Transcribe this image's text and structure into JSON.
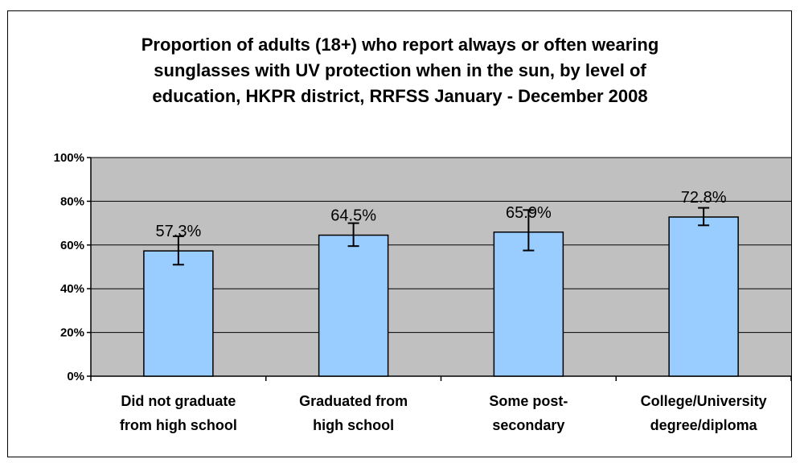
{
  "chart_data": {
    "type": "bar",
    "title": "Proportion of adults (18+) who report always or often wearing sunglasses with UV protection when in the sun, by level of education, HKPR district, RRFSS January - December 2008",
    "title_lines": [
      "Proportion of adults (18+) who report always or often wearing",
      "sunglasses with UV protection when in the sun, by level of",
      "education, HKPR district, RRFSS January - December 2008"
    ],
    "categories": [
      [
        "Did not graduate",
        "from high school"
      ],
      [
        "Graduated from",
        "high school"
      ],
      [
        "Some post-",
        "secondary"
      ],
      [
        "College/University",
        "degree/diploma"
      ]
    ],
    "values": [
      57.3,
      64.5,
      65.9,
      72.8
    ],
    "data_labels": [
      "57.3%",
      "64.5%",
      "65.9%",
      "72.8%"
    ],
    "error_low": [
      51.0,
      59.5,
      57.5,
      69.0
    ],
    "error_high": [
      64.0,
      70.0,
      76.0,
      77.0
    ],
    "ylim": [
      0,
      100
    ],
    "yticks": [
      0,
      20,
      40,
      60,
      80,
      100
    ],
    "ytick_labels": [
      "0%",
      "20%",
      "40%",
      "60%",
      "80%",
      "100%"
    ],
    "xlabel": "",
    "ylabel": "",
    "grid": true,
    "legend": "none",
    "colors": {
      "bar_fill": "#99CCFF",
      "plot_background": "#C0C0C0",
      "grid": "#000000",
      "bar_border": "#000000"
    }
  }
}
